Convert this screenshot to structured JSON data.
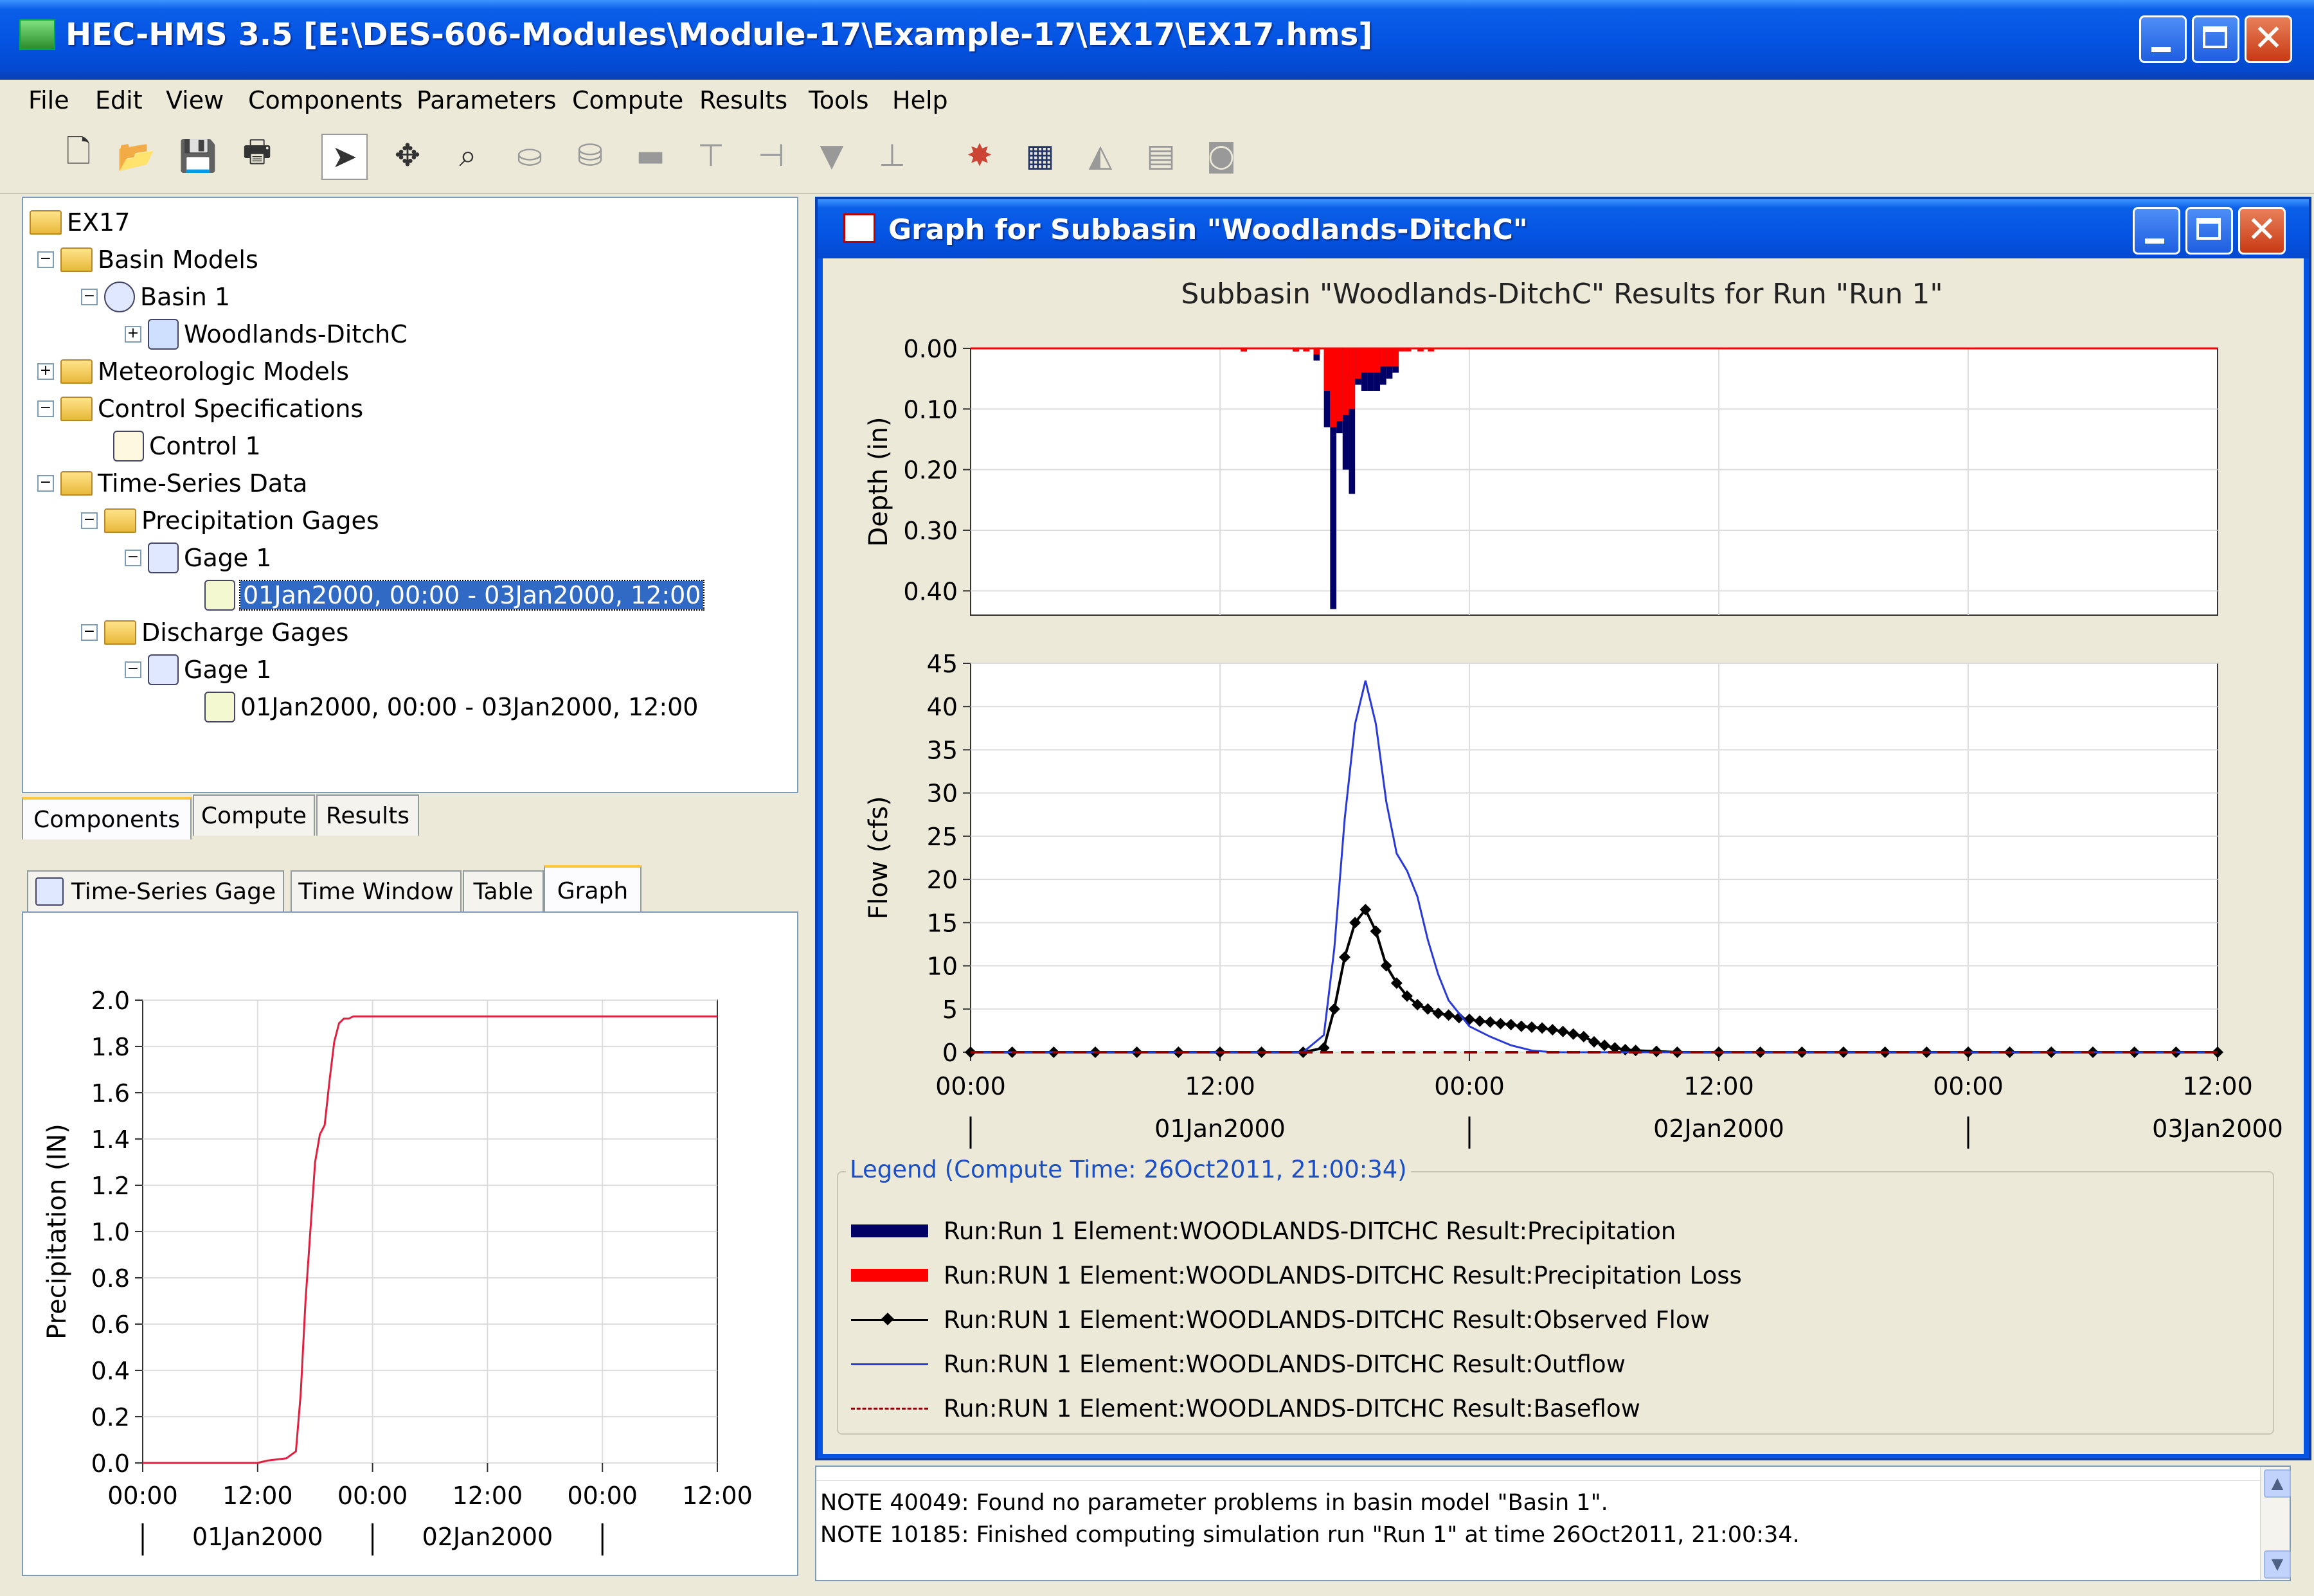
{
  "window": {
    "title": "HEC-HMS 3.5 [E:\\DES-606-Modules\\Module-17\\Example-17\\EX17\\EX17.hms]"
  },
  "menu": [
    "File",
    "Edit",
    "View",
    "Components",
    "Parameters",
    "Compute",
    "Results",
    "Tools",
    "Help"
  ],
  "tree": {
    "root": "EX17",
    "basin_models": "Basin Models",
    "basin1": "Basin 1",
    "subbasin": "Woodlands-DitchC",
    "met_models": "Meteorologic Models",
    "control_specs": "Control Specifications",
    "control1": "Control 1",
    "timeseries": "Time-Series Data",
    "precip_gages": "Precipitation Gages",
    "precip_gage1": "Gage 1",
    "precip_window": "01Jan2000, 00:00 - 03Jan2000, 12:00",
    "discharge_gages": "Discharge Gages",
    "discharge_gage1": "Gage 1",
    "discharge_window": "01Jan2000, 00:00 - 03Jan2000, 12:00"
  },
  "nav_tabs": [
    "Components",
    "Compute",
    "Results"
  ],
  "editor_tabs": [
    "Time-Series Gage",
    "Time Window",
    "Table",
    "Graph"
  ],
  "graph_window": {
    "title": "Graph for Subbasin \"Woodlands-DitchC\"",
    "chart_title": "Subbasin \"Woodlands-DitchC\" Results for Run \"Run 1\"",
    "legend_title": "Legend (Compute Time: 26Oct2011, 21:00:34)",
    "legend": [
      {
        "label": "Run:Run 1 Element:WOODLANDS-DITCHC Result:Precipitation",
        "color": "#000066",
        "style": "thick"
      },
      {
        "label": "Run:RUN 1 Element:WOODLANDS-DITCHC Result:Precipitation Loss",
        "color": "#ff0000",
        "style": "thick"
      },
      {
        "label": "Run:RUN 1 Element:WOODLANDS-DITCHC Result:Observed Flow",
        "color": "#000000",
        "style": "marker"
      },
      {
        "label": "Run:RUN 1 Element:WOODLANDS-DITCHC Result:Outflow",
        "color": "#2a3ad8",
        "style": "line"
      },
      {
        "label": "Run:RUN 1 Element:WOODLANDS-DITCHC Result:Baseflow",
        "color": "#8b0000",
        "style": "dashed"
      }
    ]
  },
  "messages": [
    "NOTE 40049:  Found no parameter problems in basin model \"Basin 1\".",
    "NOTE 10185:  Finished computing simulation run \"Run 1\" at time 26Oct2011, 21:00:34."
  ],
  "chart_data": [
    {
      "type": "bar",
      "name": "depth",
      "ylabel": "Depth (in)",
      "ylim": [
        0.0,
        0.44
      ],
      "y_inverted": true,
      "yticks": [
        "0.00",
        "0.10",
        "0.20",
        "0.30",
        "0.40"
      ],
      "x_hours": [
        13.0,
        15.5,
        16.0,
        16.5,
        17.0,
        17.3,
        17.6,
        17.9,
        18.2,
        18.5,
        18.8,
        19.1,
        19.4,
        19.7,
        20.0,
        20.3,
        20.6,
        20.9,
        21.5,
        22.0
      ],
      "series": [
        {
          "name": "Precipitation",
          "color": "#000066",
          "values": [
            0.005,
            0.005,
            0.0,
            0.02,
            0.13,
            0.43,
            0.14,
            0.2,
            0.24,
            0.06,
            0.07,
            0.07,
            0.07,
            0.06,
            0.05,
            0.04,
            0.0,
            0.0,
            0.0,
            0.0
          ]
        },
        {
          "name": "Precipitation Loss",
          "color": "#ff0000",
          "values": [
            0.005,
            0.005,
            0.005,
            0.01,
            0.07,
            0.13,
            0.12,
            0.11,
            0.1,
            0.05,
            0.04,
            0.04,
            0.04,
            0.03,
            0.03,
            0.03,
            0.005,
            0.005,
            0.005,
            0.005
          ]
        }
      ]
    },
    {
      "type": "line",
      "name": "flow",
      "ylabel": "Flow (cfs)",
      "ylim": [
        0,
        45
      ],
      "yticks": [
        "0",
        "5",
        "10",
        "15",
        "20",
        "25",
        "30",
        "35",
        "40",
        "45"
      ],
      "xlim_hours": [
        0,
        60
      ],
      "xticks": [
        "00:00",
        "12:00",
        "00:00",
        "12:00",
        "00:00",
        "12:00"
      ],
      "date_labels": [
        "01Jan2000",
        "02Jan2000",
        "03Jan2000"
      ],
      "series": [
        {
          "name": "Observed Flow",
          "color": "#000000",
          "x": [
            0,
            2,
            4,
            6,
            8,
            10,
            12,
            14,
            16,
            17,
            17.5,
            18,
            18.5,
            19,
            19.5,
            20,
            20.5,
            21,
            21.5,
            22,
            22.5,
            23,
            23.5,
            24,
            24.5,
            25,
            25.5,
            26,
            26.5,
            27,
            27.5,
            28,
            28.5,
            29,
            29.5,
            30,
            30.5,
            31,
            31.5,
            32,
            33,
            34,
            36,
            38,
            40,
            42,
            44,
            46,
            48,
            50,
            52,
            54,
            56,
            58,
            60
          ],
          "y": [
            0,
            0,
            0,
            0,
            0,
            0,
            0,
            0,
            0,
            0.5,
            5,
            11,
            15,
            16.5,
            14,
            10,
            8,
            6.5,
            5.5,
            5,
            4.5,
            4.3,
            4,
            3.8,
            3.6,
            3.5,
            3.3,
            3.2,
            3,
            2.9,
            2.8,
            2.6,
            2.4,
            2.1,
            1.8,
            1.2,
            0.8,
            0.5,
            0.3,
            0.2,
            0.1,
            0,
            0,
            0,
            0,
            0,
            0,
            0,
            0,
            0,
            0,
            0,
            0,
            0,
            0
          ]
        },
        {
          "name": "Outflow",
          "color": "#2a3ad8",
          "x": [
            0,
            16,
            17,
            17.5,
            18,
            18.5,
            19,
            19.5,
            20,
            20.5,
            21,
            21.5,
            22,
            22.5,
            23,
            23.5,
            24,
            25,
            26,
            27,
            28,
            60
          ],
          "y": [
            0,
            0,
            2,
            12,
            27,
            38,
            43,
            38,
            29,
            23,
            21,
            18,
            13,
            9,
            6,
            4.5,
            3,
            1.8,
            0.8,
            0.2,
            0,
            0
          ]
        },
        {
          "name": "Baseflow",
          "color": "#8b0000",
          "x": [
            0,
            60
          ],
          "y": [
            0,
            0
          ]
        }
      ]
    },
    {
      "type": "line",
      "name": "precip_gage",
      "ylabel": "Precipitation (IN)",
      "ylim": [
        0,
        2.0
      ],
      "yticks": [
        "0.0",
        "0.2",
        "0.4",
        "0.6",
        "0.8",
        "1.0",
        "1.2",
        "1.4",
        "1.6",
        "1.8",
        "2.0"
      ],
      "xlim_hours": [
        0,
        60
      ],
      "xticks": [
        "00:00",
        "12:00",
        "00:00",
        "12:00",
        "00:00",
        "12:00"
      ],
      "date_labels": [
        "01Jan2000",
        "02Jan2000"
      ],
      "series": [
        {
          "name": "Gage 1",
          "color": "#e02040",
          "x": [
            0,
            12,
            13,
            15,
            16,
            16.5,
            17,
            17.5,
            18,
            18.5,
            19,
            19.5,
            20,
            20.5,
            21,
            21.5,
            22,
            23,
            24,
            60
          ],
          "y": [
            0,
            0,
            0.01,
            0.02,
            0.05,
            0.3,
            0.7,
            1.0,
            1.3,
            1.42,
            1.46,
            1.65,
            1.82,
            1.9,
            1.92,
            1.92,
            1.93,
            1.93,
            1.93,
            1.93
          ]
        }
      ]
    }
  ]
}
